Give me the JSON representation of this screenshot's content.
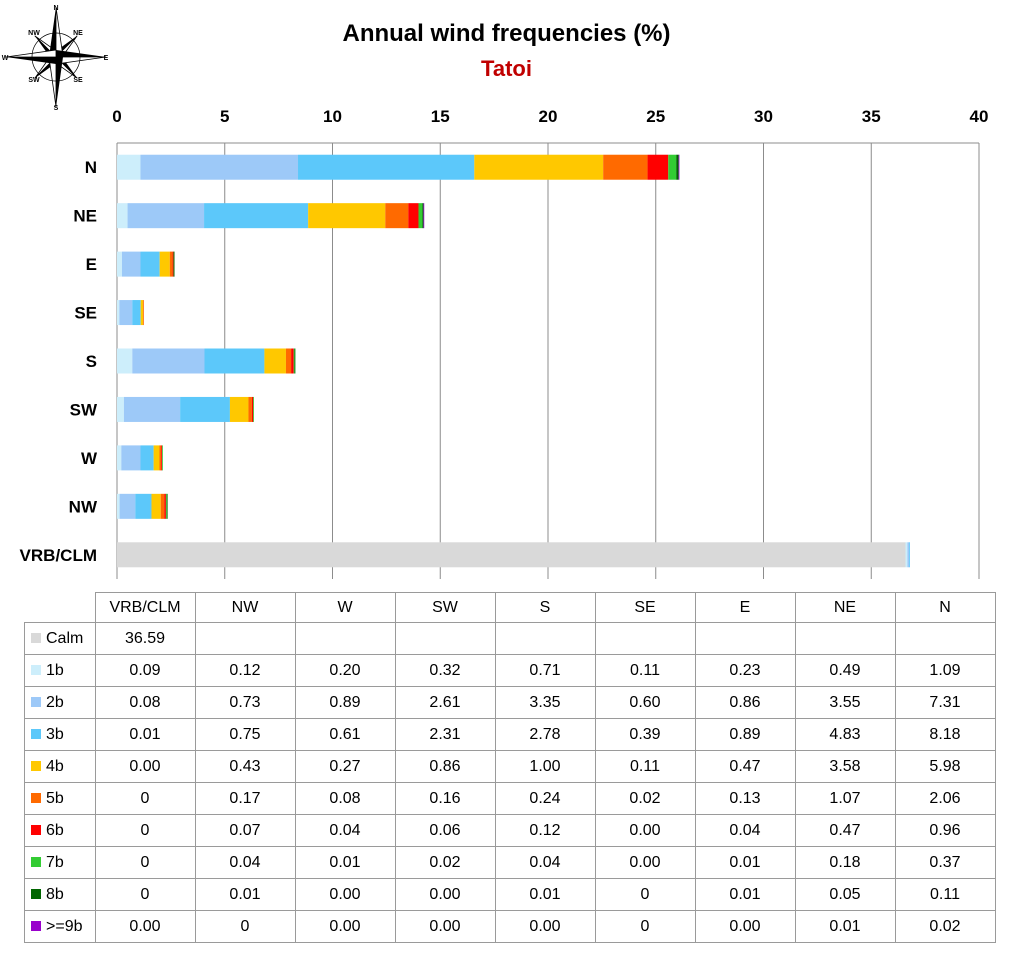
{
  "title": "Annual wind frequencies (%)",
  "subtitle": "Tatoi",
  "colors": {
    "subtitle": "#c00000",
    "grid": "#8c8c8c"
  },
  "compass": {
    "labels": [
      "N",
      "NE",
      "E",
      "SE",
      "S",
      "SW",
      "W",
      "NW"
    ]
  },
  "chart_data": {
    "type": "bar",
    "orientation": "horizontal",
    "stacked": true,
    "title": "Annual wind frequencies (%)",
    "subtitle": "Tatoi",
    "xlim": [
      0,
      40
    ],
    "x_ticks": [
      0,
      5,
      10,
      15,
      20,
      25,
      30,
      35,
      40
    ],
    "x_axis_position": "top",
    "grid": true,
    "legend": "table-below",
    "categories": [
      "N",
      "NE",
      "E",
      "SE",
      "S",
      "SW",
      "W",
      "NW",
      "VRB/CLM"
    ],
    "table_columns": [
      "VRB/CLM",
      "NW",
      "W",
      "SW",
      "S",
      "SE",
      "E",
      "NE",
      "N"
    ],
    "series": [
      {
        "name": "Calm",
        "color": "#d9d9d9",
        "values": [
          null,
          null,
          null,
          null,
          null,
          null,
          null,
          null,
          36.59
        ],
        "labels": [
          "",
          "",
          "",
          "",
          "",
          "",
          "",
          "",
          "36.59"
        ]
      },
      {
        "name": "1b",
        "color": "#cdeefb",
        "values": [
          1.09,
          0.49,
          0.23,
          0.11,
          0.71,
          0.32,
          0.2,
          0.12,
          0.09
        ],
        "labels": [
          "1.09",
          "0.49",
          "0.23",
          "0.11",
          "0.71",
          "0.32",
          "0.20",
          "0.12",
          "0.09"
        ]
      },
      {
        "name": "2b",
        "color": "#9dc9f8",
        "values": [
          7.31,
          3.55,
          0.86,
          0.6,
          3.35,
          2.61,
          0.89,
          0.73,
          0.08
        ],
        "labels": [
          "7.31",
          "3.55",
          "0.86",
          "0.60",
          "3.35",
          "2.61",
          "0.89",
          "0.73",
          "0.08"
        ]
      },
      {
        "name": "3b",
        "color": "#5cc8fa",
        "values": [
          8.18,
          4.83,
          0.89,
          0.39,
          2.78,
          2.31,
          0.61,
          0.75,
          0.01
        ],
        "labels": [
          "8.18",
          "4.83",
          "0.89",
          "0.39",
          "2.78",
          "2.31",
          "0.61",
          "0.75",
          "0.01"
        ]
      },
      {
        "name": "4b",
        "color": "#ffc800",
        "values": [
          5.98,
          3.58,
          0.47,
          0.11,
          1.0,
          0.86,
          0.27,
          0.43,
          0.0
        ],
        "labels": [
          "5.98",
          "3.58",
          "0.47",
          "0.11",
          "1.00",
          "0.86",
          "0.27",
          "0.43",
          "0.00"
        ]
      },
      {
        "name": "5b",
        "color": "#ff6a00",
        "values": [
          2.06,
          1.07,
          0.13,
          0.02,
          0.24,
          0.16,
          0.08,
          0.17,
          0
        ],
        "labels": [
          "2.06",
          "1.07",
          "0.13",
          "0.02",
          "0.24",
          "0.16",
          "0.08",
          "0.17",
          "0"
        ]
      },
      {
        "name": "6b",
        "color": "#ff0000",
        "values": [
          0.96,
          0.47,
          0.04,
          0.0,
          0.12,
          0.06,
          0.04,
          0.07,
          0
        ],
        "labels": [
          "0.96",
          "0.47",
          "0.04",
          "0.00",
          "0.12",
          "0.06",
          "0.04",
          "0.07",
          "0"
        ]
      },
      {
        "name": "7b",
        "color": "#33cc33",
        "values": [
          0.37,
          0.18,
          0.01,
          0.0,
          0.04,
          0.02,
          0.01,
          0.04,
          0
        ],
        "labels": [
          "0.37",
          "0.18",
          "0.01",
          "0.00",
          "0.04",
          "0.02",
          "0.01",
          "0.04",
          "0"
        ]
      },
      {
        "name": "8b",
        "color": "#006600",
        "values": [
          0.11,
          0.05,
          0.01,
          0,
          0.01,
          0.0,
          0.0,
          0.01,
          0
        ],
        "labels": [
          "0.11",
          "0.05",
          "0.01",
          "0",
          "0.01",
          "0.00",
          "0.00",
          "0.01",
          "0"
        ]
      },
      {
        "name": ">=9b",
        "color": "#9900cc",
        "values": [
          0.02,
          0.01,
          0.0,
          0,
          0.0,
          0.0,
          0.0,
          0,
          0.0
        ],
        "labels": [
          "0.02",
          "0.01",
          "0.00",
          "0",
          "0.00",
          "0.00",
          "0.00",
          "0",
          "0.00"
        ]
      }
    ]
  }
}
